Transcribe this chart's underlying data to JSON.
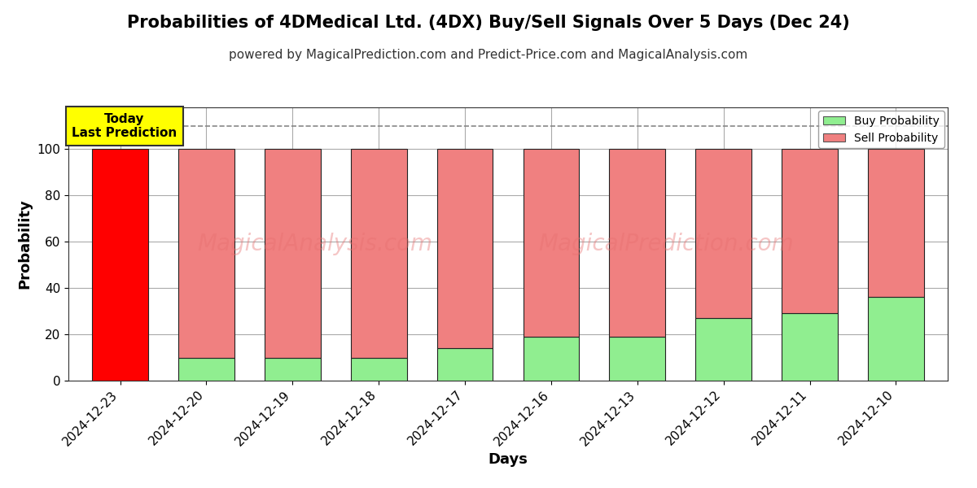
{
  "title": "Probabilities of 4DMedical Ltd. (4DX) Buy/Sell Signals Over 5 Days (Dec 24)",
  "subtitle": "powered by MagicalPrediction.com and Predict-Price.com and MagicalAnalysis.com",
  "xlabel": "Days",
  "ylabel": "Probability",
  "watermark1": "MagicalAnalysis.com",
  "watermark2": "MagicalPrediction.com",
  "categories": [
    "2024-12-23",
    "2024-12-20",
    "2024-12-19",
    "2024-12-18",
    "2024-12-17",
    "2024-12-16",
    "2024-12-13",
    "2024-12-12",
    "2024-12-11",
    "2024-12-10"
  ],
  "buy_values": [
    0,
    10,
    10,
    10,
    14,
    19,
    19,
    27,
    29,
    36
  ],
  "sell_values": [
    100,
    90,
    90,
    90,
    86,
    81,
    81,
    73,
    71,
    64
  ],
  "today_index": 0,
  "today_color": "#ff0000",
  "buy_color": "#90ee90",
  "sell_color": "#f08080",
  "bar_edge_color": "#222222",
  "today_annotation_text": "Today\nLast Prediction",
  "today_annotation_bg": "#ffff00",
  "legend_buy_label": "Buy Probability",
  "legend_sell_label": "Sell Probability",
  "ylim": [
    0,
    118
  ],
  "yticks": [
    0,
    20,
    40,
    60,
    80,
    100
  ],
  "dashed_line_y": 110,
  "background_color": "#ffffff",
  "grid_color": "#aaaaaa",
  "title_fontsize": 15,
  "subtitle_fontsize": 11,
  "axis_label_fontsize": 13,
  "tick_fontsize": 11
}
